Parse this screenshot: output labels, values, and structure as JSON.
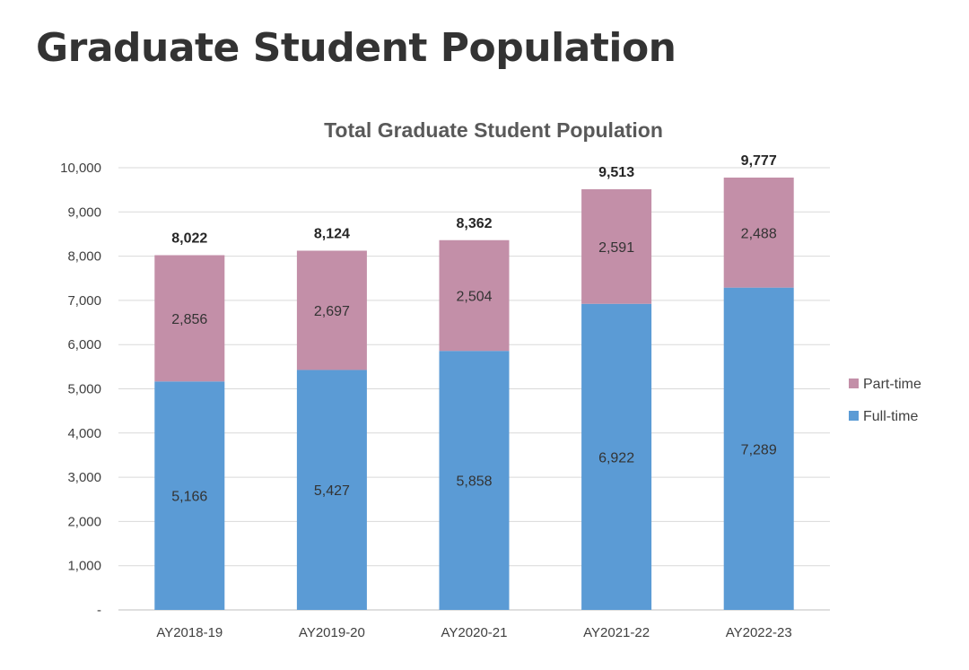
{
  "page": {
    "heading": "Graduate Student Population"
  },
  "chart_data": {
    "type": "bar",
    "stacked": true,
    "title": "Total Graduate Student Population",
    "xlabel": "",
    "ylabel": "",
    "categories": [
      "AY2018-19",
      "AY2019-20",
      "AY2020-21",
      "AY2021-22",
      "AY2022-23"
    ],
    "series": [
      {
        "name": "Full-time",
        "color": "#5b9bd5",
        "values": [
          5166,
          5427,
          5858,
          6922,
          7289
        ],
        "labels": [
          "5,166",
          "5,427",
          "5,858",
          "6,922",
          "7,289"
        ]
      },
      {
        "name": "Part-time",
        "color": "#c38fa8",
        "values": [
          2856,
          2697,
          2504,
          2591,
          2488
        ],
        "labels": [
          "2,856",
          "2,697",
          "2,504",
          "2,591",
          "2,488"
        ]
      }
    ],
    "totals": [
      "8,022",
      "8,124",
      "8,362",
      "9,513",
      "9,777"
    ],
    "ylim": [
      0,
      10000
    ],
    "yticks": [
      0,
      1000,
      2000,
      3000,
      4000,
      5000,
      6000,
      7000,
      8000,
      9000,
      10000
    ],
    "ytick_labels": [
      "-",
      "1,000",
      "2,000",
      "3,000",
      "4,000",
      "5,000",
      "6,000",
      "7,000",
      "8,000",
      "9,000",
      "10,000"
    ],
    "grid": true,
    "legend_position": "right",
    "legend": [
      "Part-time",
      "Full-time"
    ]
  }
}
